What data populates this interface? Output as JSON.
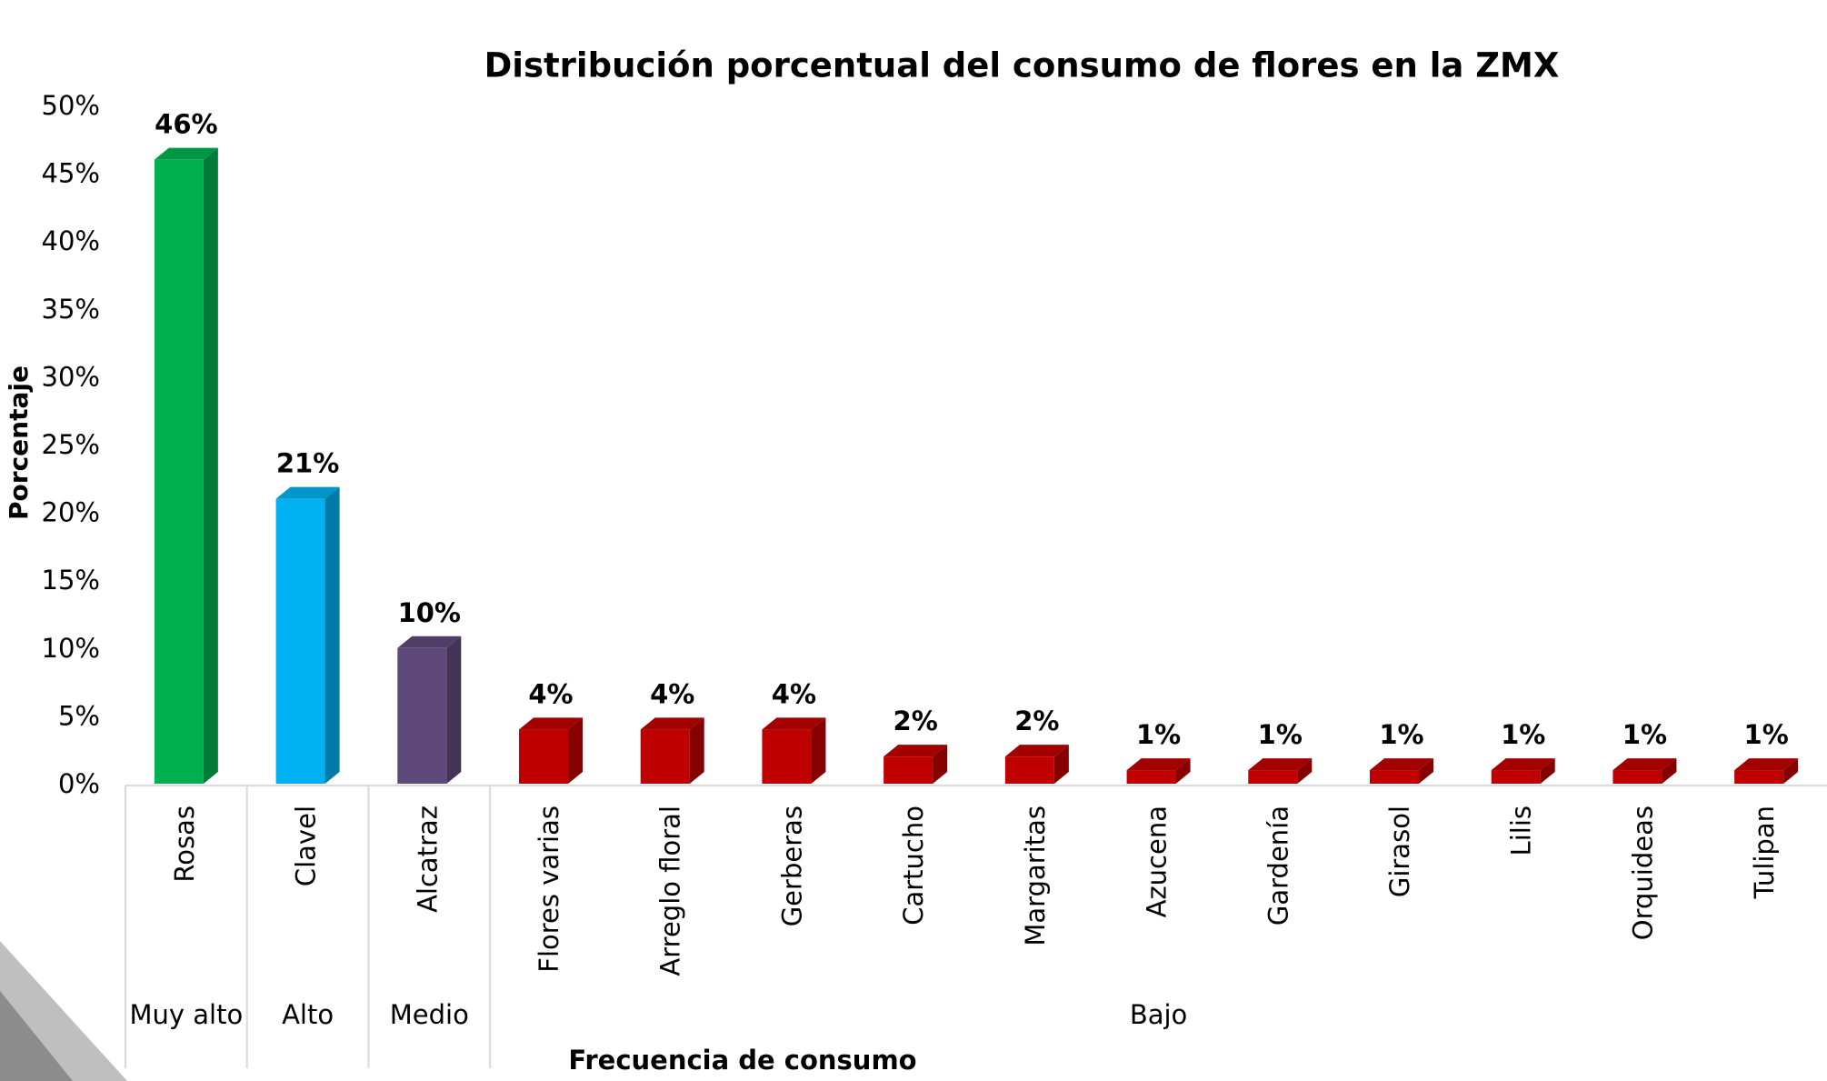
{
  "chart_data": {
    "type": "bar3d",
    "title": "Distribución porcentual del consumo de flores en la ZMX",
    "y_label": "Porcentaje",
    "x_label": "Frecuencia de consumo",
    "categories": [
      "Rosas",
      "Clavel",
      "Alcatraz",
      "Flores varias",
      "Arreglo floral",
      "Gerberas",
      "Cartucho",
      "Margaritas",
      "Azucena",
      "Gardenía",
      "Girasol",
      "Lilis",
      "Orquideas",
      "Tulipan"
    ],
    "values": [
      46,
      21,
      10,
      4,
      4,
      4,
      2,
      2,
      1,
      1,
      1,
      1,
      1,
      1
    ],
    "value_labels": [
      "46%",
      "21%",
      "10%",
      "4%",
      "4%",
      "4%",
      "2%",
      "2%",
      "1%",
      "1%",
      "1%",
      "1%",
      "1%",
      "1%"
    ],
    "colors": [
      "#00b050",
      "#00b0f0",
      "#5f497a",
      "#c00000",
      "#c00000",
      "#c00000",
      "#c00000",
      "#c00000",
      "#c00000",
      "#c00000",
      "#c00000",
      "#c00000",
      "#c00000",
      "#c00000"
    ],
    "groups": [
      {
        "label": "Muy alto",
        "categories": [
          "Rosas"
        ]
      },
      {
        "label": "Alto",
        "categories": [
          "Clavel"
        ]
      },
      {
        "label": "Medio",
        "categories": [
          "Alcatraz"
        ]
      },
      {
        "label": "Bajo",
        "categories": [
          "Flores varias",
          "Arreglo floral",
          "Gerberas",
          "Cartucho",
          "Margaritas",
          "Azucena",
          "Gardenía",
          "Girasol",
          "Lilis",
          "Orquideas",
          "Tulipan"
        ]
      }
    ],
    "ylim": [
      0,
      50
    ],
    "yticks": [
      {
        "value": 0,
        "label": "0%"
      },
      {
        "value": 5,
        "label": "5%"
      },
      {
        "value": 10,
        "label": "10%"
      },
      {
        "value": 15,
        "label": "15%"
      },
      {
        "value": 20,
        "label": "20%"
      },
      {
        "value": 25,
        "label": "25%"
      },
      {
        "value": 30,
        "label": "30%"
      },
      {
        "value": 35,
        "label": "35%"
      },
      {
        "value": 40,
        "label": "40%"
      },
      {
        "value": 45,
        "label": "45%"
      },
      {
        "value": 50,
        "label": "50%"
      }
    ],
    "grid": false
  }
}
